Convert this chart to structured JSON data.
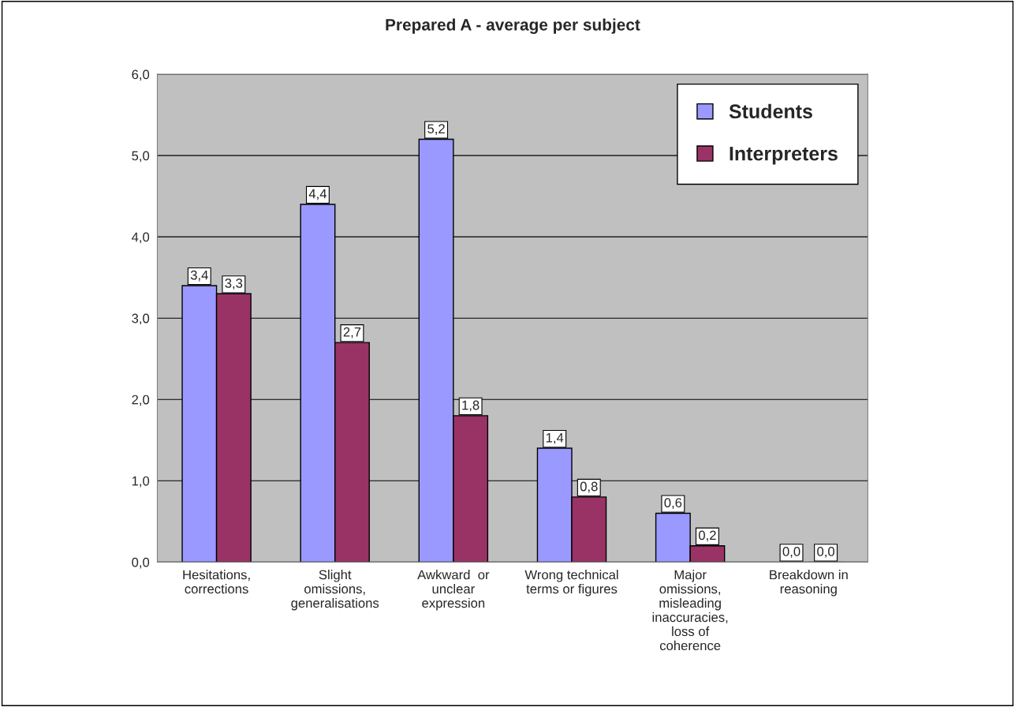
{
  "chart_data": {
    "type": "bar",
    "title": "Prepared A - average per subject",
    "categories": [
      "Hesitations,\ncorrections",
      "Slight\nomissions,\ngeneralisations",
      "Awkward  or\nunclear\nexpression",
      "Wrong technical\nterms or figures",
      "Major\nomissions,\nmisleading\ninaccuracies,\nloss of\ncoherence",
      "Breakdown in\nreasoning"
    ],
    "series": [
      {
        "name": "Students",
        "color": "#9999ff",
        "values": [
          3.4,
          4.4,
          5.2,
          1.4,
          0.6,
          0.0
        ],
        "value_labels": [
          "3,4",
          "4,4",
          "5,2",
          "1,4",
          "0,6",
          "0,0"
        ]
      },
      {
        "name": "Interpreters",
        "color": "#993366",
        "values": [
          3.3,
          2.7,
          1.8,
          0.8,
          0.2,
          0.0
        ],
        "value_labels": [
          "3,3",
          "2,7",
          "1,8",
          "0,8",
          "0,2",
          "0,0"
        ]
      }
    ],
    "ylim": [
      0,
      6
    ],
    "yticks": [
      {
        "value": 0,
        "label": "0,0"
      },
      {
        "value": 1,
        "label": "1,0"
      },
      {
        "value": 2,
        "label": "2,0"
      },
      {
        "value": 3,
        "label": "3,0"
      },
      {
        "value": 4,
        "label": "4,0"
      },
      {
        "value": 5,
        "label": "5,0"
      },
      {
        "value": 6,
        "label": "6,0"
      }
    ],
    "grid": "y",
    "legend": "top right"
  }
}
